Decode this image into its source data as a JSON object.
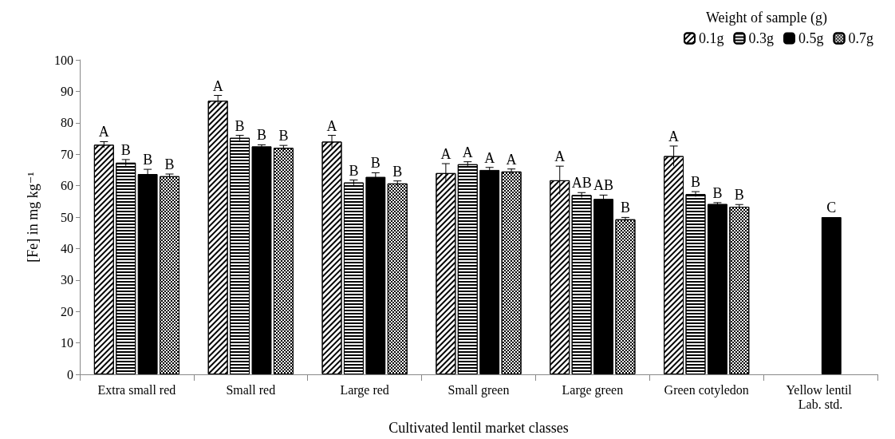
{
  "chart_data": {
    "type": "bar",
    "xlabel": "Cultivated lentil market classes",
    "ylabel": "[Fe] in mg kg⁻¹",
    "legend_title": "Weight of sample (g)",
    "legend": "top right",
    "grid": false,
    "categories": [
      "Extra small red",
      "Small red",
      "Large red",
      "Small green",
      "Large green",
      "Green cotyledon",
      "Yellow lentil Lab. std."
    ],
    "ylim": [
      0,
      100
    ],
    "yticks": [
      0,
      10,
      20,
      30,
      40,
      50,
      60,
      70,
      80,
      90,
      100
    ],
    "series": [
      {
        "name": "0.1g",
        "color": "#000000",
        "values": [
          73,
          87,
          74,
          64,
          61.7,
          69.4,
          null
        ],
        "errors": [
          1,
          1.7,
          2,
          3,
          4.5,
          3.2,
          null
        ],
        "value_labels": [
          "A",
          "A",
          "A",
          "A",
          "A",
          "A",
          null
        ]
      },
      {
        "name": "0.3g",
        "color": "#000000",
        "values": [
          67.3,
          75.2,
          61,
          66.8,
          57,
          57.3,
          null
        ],
        "errors": [
          1,
          0.8,
          0.8,
          0.8,
          0.8,
          0.8,
          null
        ],
        "value_labels": [
          "B",
          "B",
          "B",
          "A",
          "AB",
          "B",
          null
        ]
      },
      {
        "name": "0.5g",
        "color": "#000000",
        "values": [
          63.7,
          72.5,
          62.8,
          65,
          55.8,
          54.2,
          50
        ],
        "errors": [
          1.5,
          0.5,
          1.3,
          0.8,
          1.2,
          0.4,
          null
        ],
        "value_labels": [
          "B",
          "B",
          "B",
          "A",
          "AB",
          "B",
          "C"
        ]
      },
      {
        "name": "0.7g",
        "color": "#000000",
        "values": [
          63,
          72,
          60.7,
          64.5,
          49.3,
          53.3,
          null
        ],
        "errors": [
          0.7,
          0.8,
          0.8,
          0.8,
          0.6,
          0.7,
          null
        ],
        "value_labels": [
          "B",
          "B",
          "B",
          "A",
          "B",
          "B",
          null
        ]
      }
    ]
  }
}
